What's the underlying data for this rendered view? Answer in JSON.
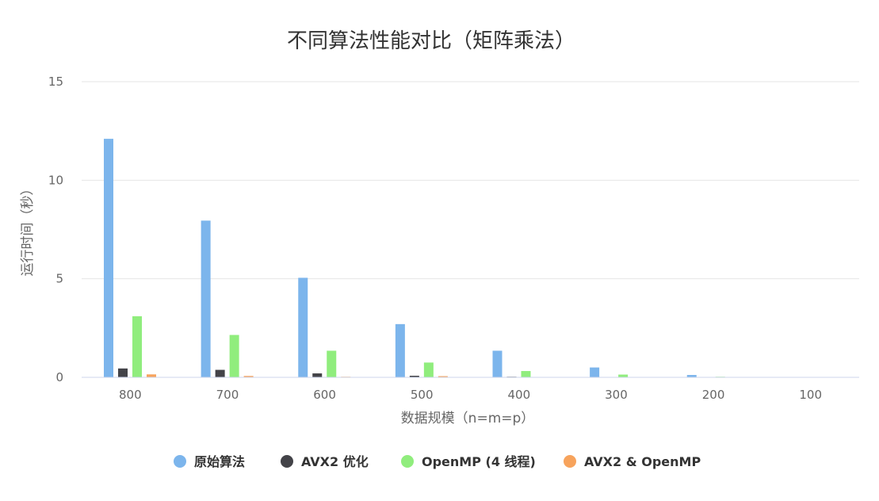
{
  "chart_data": {
    "type": "bar",
    "title": "不同算法性能对比（矩阵乘法）",
    "xlabel": "数据规模（n=m=p）",
    "ylabel": "运行时间（秒）",
    "categories": [
      "800",
      "700",
      "600",
      "500",
      "400",
      "300",
      "200",
      "100"
    ],
    "ylim": [
      0,
      15
    ],
    "yticks": [
      "0",
      "5",
      "10",
      "15"
    ],
    "grid": true,
    "legend_position": "bottom",
    "series": [
      {
        "name": "原始算法",
        "color": "#7cb5ec",
        "values": [
          12.1,
          7.95,
          5.05,
          2.7,
          1.35,
          0.5,
          0.12,
          0.01
        ]
      },
      {
        "name": "AVX2 优化",
        "color": "#434348",
        "values": [
          0.45,
          0.38,
          0.2,
          0.08,
          0.03,
          0.01,
          0.005,
          0.001
        ]
      },
      {
        "name": "OpenMP (4 线程)",
        "color": "#90ed7d",
        "values": [
          3.1,
          2.15,
          1.35,
          0.75,
          0.32,
          0.14,
          0.03,
          0.005
        ]
      },
      {
        "name": "AVX2 & OpenMP",
        "color": "#f7a35c",
        "values": [
          0.15,
          0.07,
          0.03,
          0.06,
          0.01,
          0.005,
          0.002,
          0.001
        ]
      }
    ]
  }
}
